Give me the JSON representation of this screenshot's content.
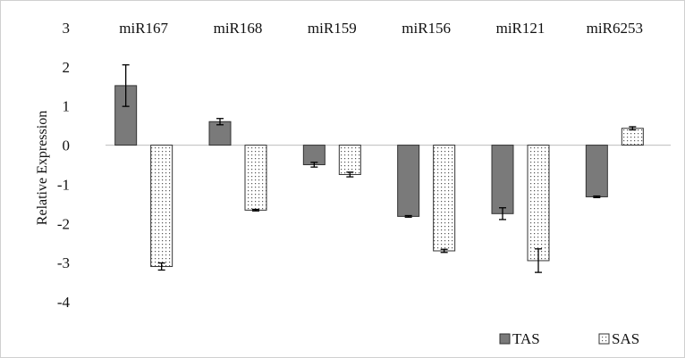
{
  "chart_data": {
    "type": "bar",
    "title": "",
    "xlabel": "",
    "ylabel": "Relative Expression",
    "ylim": [
      -4,
      3
    ],
    "yticks": [
      3,
      2,
      1,
      0,
      -1,
      -2,
      -3,
      -4
    ],
    "categories": [
      "miR167",
      "miR168",
      "miR159",
      "miR156",
      "miR121",
      "miR6253"
    ],
    "series": [
      {
        "name": "TAS",
        "color": "#7a7a7a",
        "pattern": "solid",
        "values": [
          1.52,
          0.6,
          -0.5,
          -1.82,
          -1.75,
          -1.32
        ],
        "errors": [
          0.53,
          0.08,
          0.06,
          0.02,
          0.15,
          0.02
        ]
      },
      {
        "name": "SAS",
        "color": "#ffffff",
        "pattern": "dotted",
        "values": [
          -3.1,
          -1.66,
          -0.75,
          -2.7,
          -2.95,
          0.43
        ],
        "errors": [
          0.09,
          0.02,
          0.06,
          0.04,
          0.3,
          0.04
        ]
      }
    ],
    "grid": false,
    "legend": "bottom-right"
  }
}
